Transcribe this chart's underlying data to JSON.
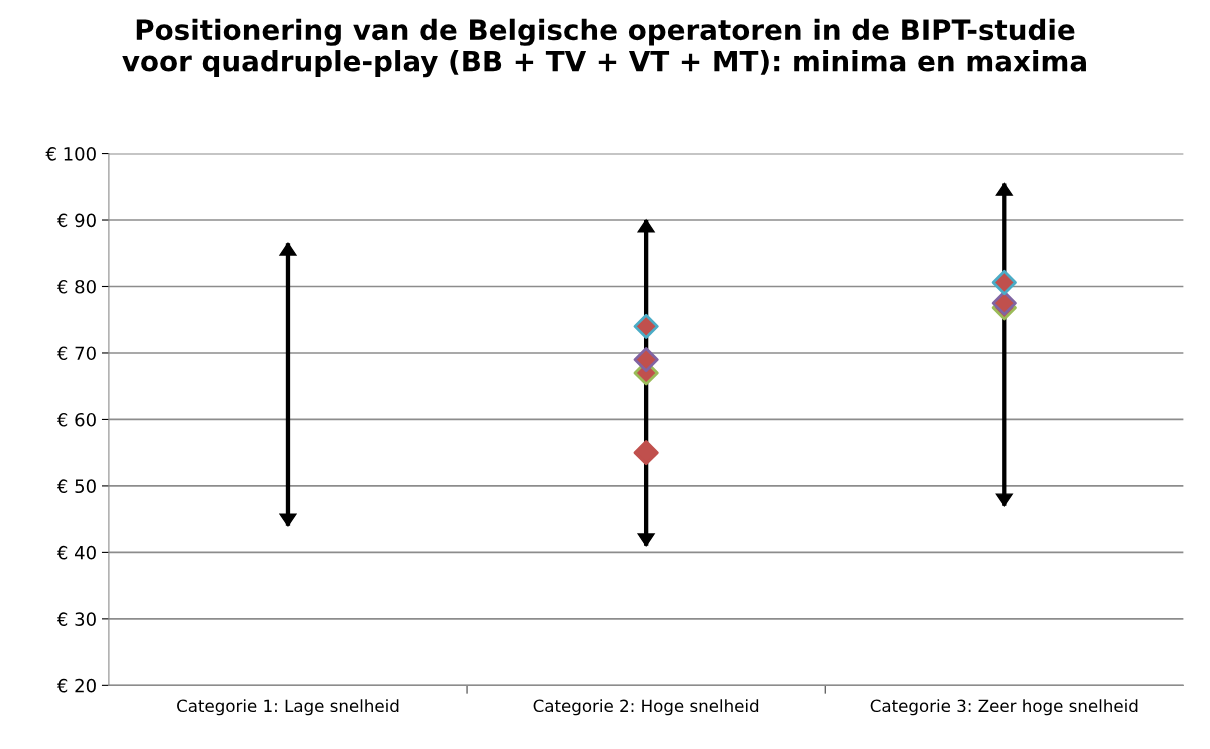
{
  "chart_data": {
    "type": "scatter",
    "title": "Positionering van de Belgische operatoren in de BIPT-studie\nvoor quadruple-play (BB + TV + VT + MT): minima en maxima",
    "categories": [
      "Categorie 1: Lage snelheid",
      "Categorie 2: Hoge snelheid",
      "Categorie 3: Zeer hoge snelheid"
    ],
    "ylim": [
      20,
      100
    ],
    "yticks": [
      {
        "value": 20,
        "label": "€ 20"
      },
      {
        "value": 30,
        "label": "€ 30"
      },
      {
        "value": 40,
        "label": "€ 40"
      },
      {
        "value": 50,
        "label": "€ 50"
      },
      {
        "value": 60,
        "label": "€ 60"
      },
      {
        "value": 70,
        "label": "€ 70"
      },
      {
        "value": 80,
        "label": "€ 80"
      },
      {
        "value": 90,
        "label": "€ 90"
      },
      {
        "value": 100,
        "label": "€ 100"
      }
    ],
    "grid": "y",
    "marker": "diamond",
    "series": [
      {
        "type": "bar",
        "color": "#000000",
        "base": [
          44,
          41,
          47
        ],
        "values": [
          42.5,
          49,
          48.5
        ]
      },
      {
        "color": "#c0504d",
        "values": [
          null,
          55,
          null
        ]
      },
      {
        "color": "#9bbb59",
        "values": [
          null,
          67,
          76.8
        ]
      },
      {
        "color": "#8064a2",
        "values": [
          null,
          69,
          77.5
        ]
      },
      {
        "color": "#4bacc6",
        "values": [
          null,
          74,
          80.6
        ]
      }
    ]
  }
}
